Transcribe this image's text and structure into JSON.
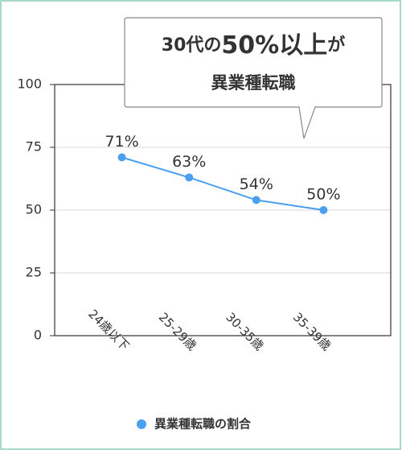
{
  "chart_data": {
    "type": "line",
    "annotation": {
      "line1": [
        "30代の",
        "50%以上",
        "が"
      ],
      "line2": "異業種転職"
    },
    "categories": [
      "24歳以下",
      "25-29歳",
      "30-35歳",
      "35-39歳"
    ],
    "series": [
      {
        "name": "異業種転職の割合",
        "color": "#4a9ff0",
        "values": [
          71,
          63,
          54,
          50
        ],
        "value_labels": [
          "71%",
          "63%",
          "54%",
          "50%"
        ]
      }
    ],
    "ylim": [
      0,
      100
    ],
    "yticks": [
      0,
      25,
      50,
      75,
      100
    ],
    "grid": true
  }
}
